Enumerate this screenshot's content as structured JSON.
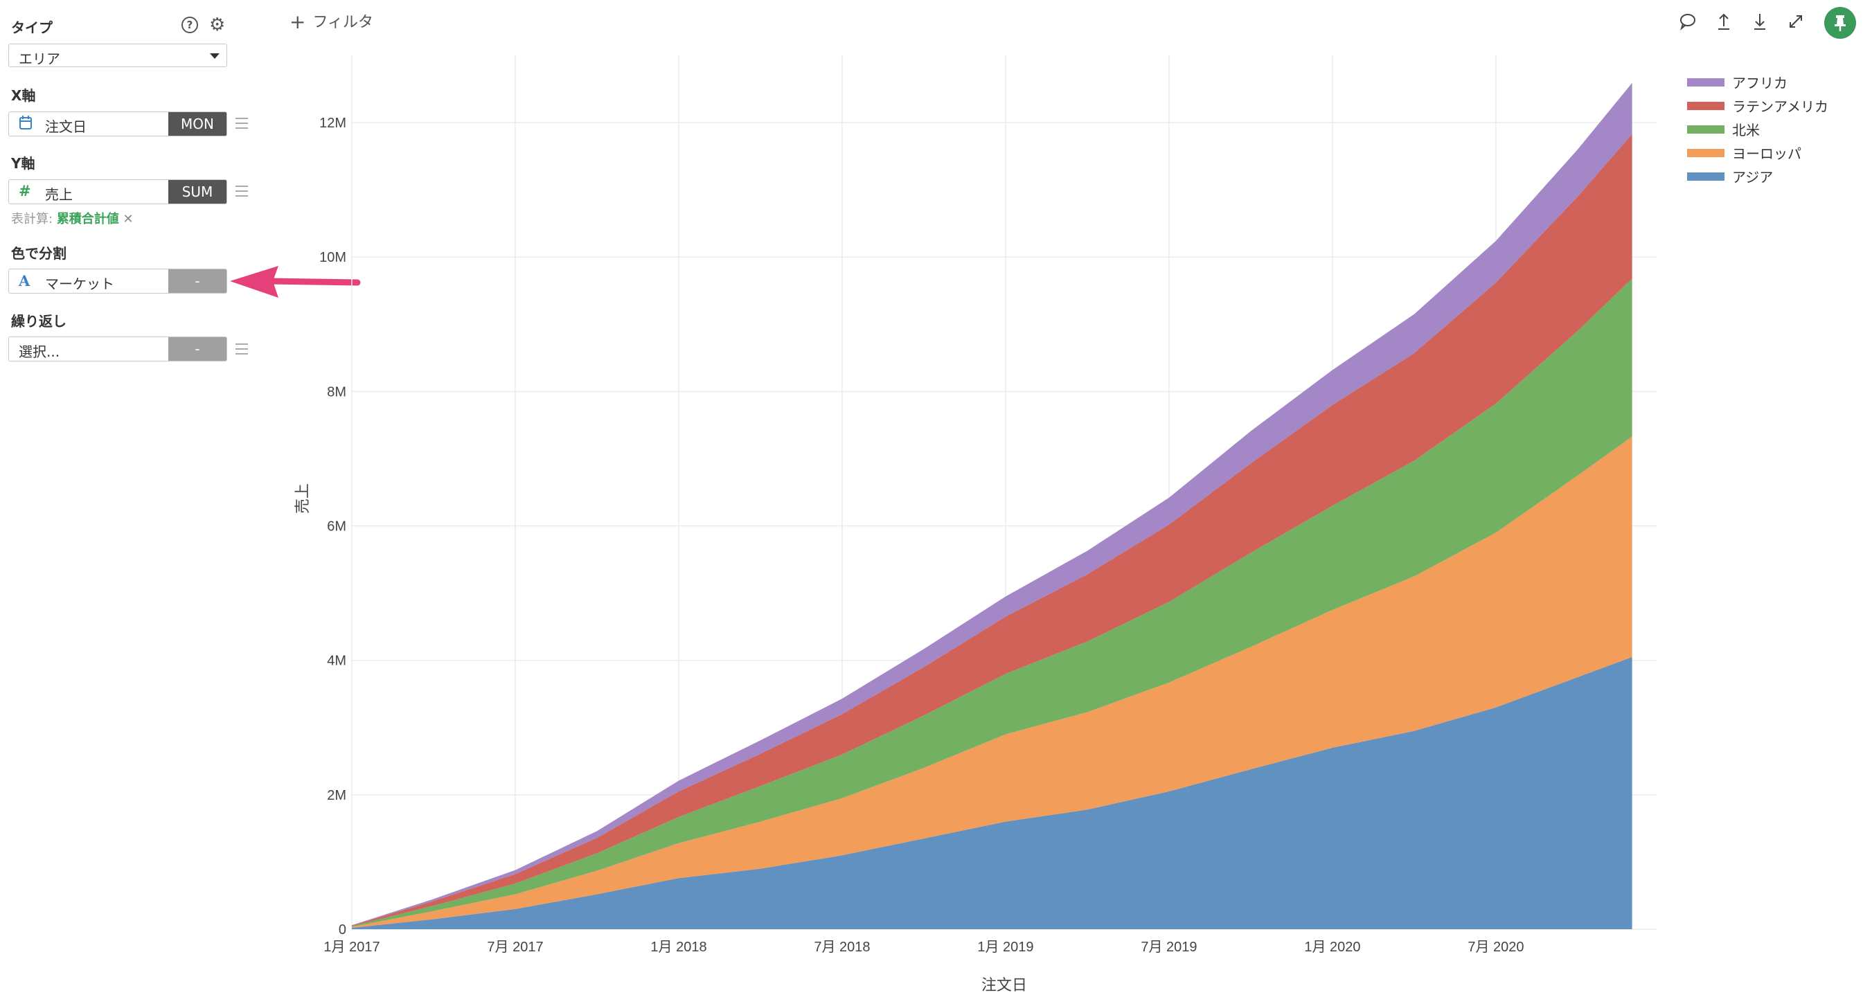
{
  "sidebar": {
    "type_label": "タイプ",
    "type_value": "エリア",
    "xaxis_label": "X軸",
    "xaxis_field": "注文日",
    "xaxis_agg": "MON",
    "yaxis_label": "Y軸",
    "yaxis_field": "売上",
    "yaxis_agg": "SUM",
    "calc_prefix": "表計算:",
    "calc_value": "累積合計値",
    "calc_close": "✕",
    "color_label": "色で分割",
    "color_field": "マーケット",
    "color_agg": "-",
    "repeat_label": "繰り返し",
    "repeat_field": "選択...",
    "repeat_agg": "-",
    "field_icons": {
      "date": "calendar-icon",
      "number": "#",
      "text": "A"
    }
  },
  "toolbar": {
    "filter_plus": "+",
    "filter_label": "フィルタ",
    "icons": [
      "comment-icon",
      "upload-icon",
      "download-icon",
      "expand-icon",
      "pin-icon"
    ],
    "pin_color": "#3a9a5b"
  },
  "chart_data": {
    "type": "area",
    "stacked": true,
    "xlabel": "注文日",
    "ylabel": "売上",
    "x_ticks": [
      "1月 2017",
      "7月 2017",
      "1月 2018",
      "7月 2018",
      "1月 2019",
      "7月 2019",
      "1月 2020",
      "7月 2020"
    ],
    "y_ticks": [
      "0",
      "2M",
      "4M",
      "6M",
      "8M",
      "10M",
      "12M"
    ],
    "ylim": [
      0,
      13000000
    ],
    "grid": true,
    "legend_position": "top-right",
    "x": [
      "2017-01",
      "2017-04",
      "2017-07",
      "2017-10",
      "2018-01",
      "2018-04",
      "2018-07",
      "2018-10",
      "2019-01",
      "2019-04",
      "2019-07",
      "2019-10",
      "2020-01",
      "2020-04",
      "2020-07",
      "2020-10",
      "2020-12"
    ],
    "series": [
      {
        "name": "アジア",
        "color": "#6191c1",
        "values": [
          20000,
          150000,
          300000,
          520000,
          760000,
          900000,
          1100000,
          1350000,
          1600000,
          1780000,
          2050000,
          2380000,
          2700000,
          2950000,
          3300000,
          3750000,
          4050000
        ]
      },
      {
        "name": "ヨーロッパ",
        "color": "#f29d5a",
        "values": [
          15000,
          120000,
          220000,
          350000,
          520000,
          700000,
          850000,
          1050000,
          1300000,
          1450000,
          1620000,
          1820000,
          2050000,
          2300000,
          2600000,
          3000000,
          3280000
        ]
      },
      {
        "name": "北米",
        "color": "#74b062",
        "values": [
          10000,
          80000,
          160000,
          260000,
          390000,
          530000,
          650000,
          780000,
          900000,
          1050000,
          1200000,
          1400000,
          1550000,
          1720000,
          1920000,
          2150000,
          2350000
        ]
      },
      {
        "name": "ラテンアメリカ",
        "color": "#d0625a",
        "values": [
          10000,
          70000,
          140000,
          230000,
          380000,
          480000,
          600000,
          720000,
          850000,
          1000000,
          1150000,
          1330000,
          1500000,
          1600000,
          1800000,
          2000000,
          2150000
        ]
      },
      {
        "name": "アフリカ",
        "color": "#a387c6",
        "values": [
          5000,
          30000,
          60000,
          100000,
          160000,
          200000,
          230000,
          270000,
          300000,
          350000,
          400000,
          480000,
          520000,
          580000,
          620000,
          700000,
          760000
        ]
      }
    ]
  }
}
